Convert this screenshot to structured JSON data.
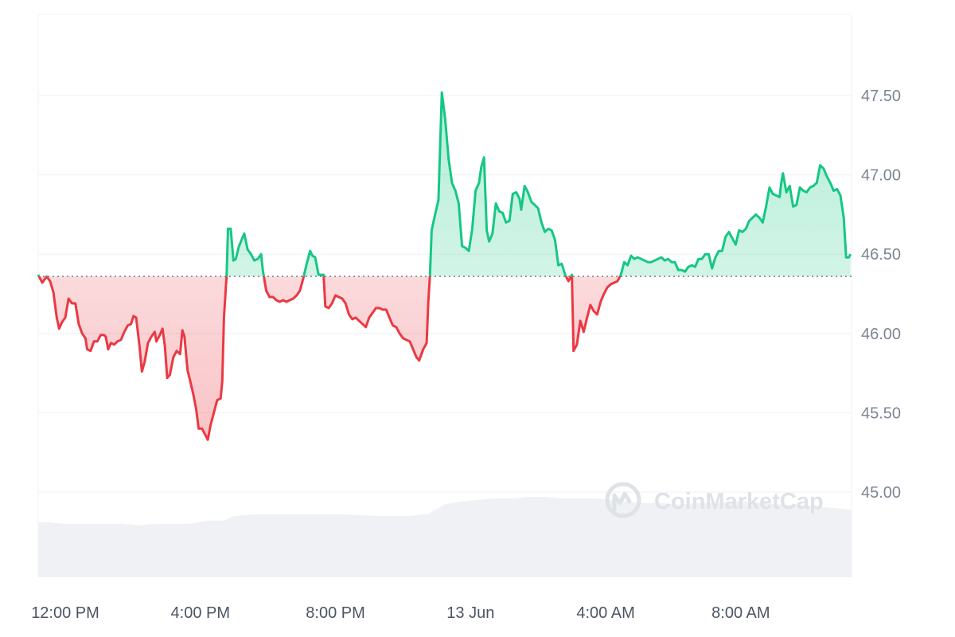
{
  "chart_data": {
    "type": "area",
    "title": "",
    "xlabel": "",
    "ylabel": "",
    "baseline": 46.36,
    "ylim": [
      44.5,
      48.0
    ],
    "yticks": [
      "47.50",
      "47.00",
      "46.50",
      "46.00",
      "45.50",
      "45.00"
    ],
    "ytick_values": [
      47.5,
      47.0,
      46.5,
      46.0,
      45.5,
      45.0
    ],
    "xticks": [
      "12:00 PM",
      "4:00 PM",
      "8:00 PM",
      "13 Jun",
      "4:00 AM",
      "8:00 AM"
    ],
    "xtick_hours": [
      0,
      4,
      8,
      12,
      16,
      20
    ],
    "xlim_hours": [
      0,
      24.08
    ],
    "grid": true,
    "colors": {
      "up": "#16c784",
      "down": "#ea3943",
      "up_fill": "#16c784",
      "down_fill": "#ea3943",
      "volume": "#eff1f4",
      "grid": "#eef0f3",
      "baseline": "#7a7f87"
    },
    "watermark": {
      "text": "CoinMarketCap",
      "icon": "coinmarketcap-logo-icon"
    },
    "series": [
      {
        "values": [
          [
            0.0,
            46.37
          ],
          [
            0.12,
            46.32
          ],
          [
            0.25,
            46.36
          ],
          [
            0.35,
            46.33
          ],
          [
            0.45,
            46.26
          ],
          [
            0.55,
            46.1
          ],
          [
            0.62,
            46.03
          ],
          [
            0.7,
            46.07
          ],
          [
            0.8,
            46.1
          ],
          [
            0.9,
            46.22
          ],
          [
            1.0,
            46.19
          ],
          [
            1.1,
            46.19
          ],
          [
            1.2,
            46.06
          ],
          [
            1.3,
            46.0
          ],
          [
            1.4,
            45.97
          ],
          [
            1.45,
            45.9
          ],
          [
            1.55,
            45.89
          ],
          [
            1.65,
            45.95
          ],
          [
            1.75,
            45.95
          ],
          [
            1.85,
            45.99
          ],
          [
            1.95,
            45.99
          ],
          [
            2.0,
            45.98
          ],
          [
            2.07,
            45.9
          ],
          [
            2.15,
            45.94
          ],
          [
            2.25,
            45.93
          ],
          [
            2.35,
            45.95
          ],
          [
            2.45,
            45.96
          ],
          [
            2.55,
            46.01
          ],
          [
            2.65,
            46.05
          ],
          [
            2.75,
            46.06
          ],
          [
            2.82,
            46.11
          ],
          [
            2.9,
            46.1
          ],
          [
            3.0,
            45.92
          ],
          [
            3.07,
            45.76
          ],
          [
            3.15,
            45.82
          ],
          [
            3.25,
            45.94
          ],
          [
            3.35,
            45.98
          ],
          [
            3.45,
            46.01
          ],
          [
            3.5,
            45.95
          ],
          [
            3.6,
            45.99
          ],
          [
            3.68,
            46.03
          ],
          [
            3.75,
            45.92
          ],
          [
            3.82,
            45.72
          ],
          [
            3.9,
            45.74
          ],
          [
            4.0,
            45.85
          ],
          [
            4.1,
            45.89
          ],
          [
            4.2,
            45.87
          ],
          [
            4.27,
            46.02
          ],
          [
            4.33,
            45.98
          ],
          [
            4.42,
            45.77
          ],
          [
            4.5,
            45.7
          ],
          [
            4.6,
            45.61
          ],
          [
            4.68,
            45.52
          ],
          [
            4.75,
            45.4
          ],
          [
            4.85,
            45.4
          ],
          [
            4.95,
            45.36
          ],
          [
            5.02,
            45.33
          ],
          [
            5.1,
            45.42
          ],
          [
            5.2,
            45.5
          ],
          [
            5.3,
            45.58
          ],
          [
            5.4,
            45.59
          ],
          [
            5.45,
            45.7
          ],
          [
            5.5,
            46.1
          ],
          [
            5.58,
            46.37
          ],
          [
            5.62,
            46.66
          ],
          [
            5.7,
            46.66
          ],
          [
            5.78,
            46.46
          ],
          [
            5.85,
            46.47
          ],
          [
            5.93,
            46.54
          ],
          [
            6.0,
            46.58
          ],
          [
            6.1,
            46.63
          ],
          [
            6.2,
            46.53
          ],
          [
            6.3,
            46.5
          ],
          [
            6.4,
            46.46
          ],
          [
            6.5,
            46.47
          ],
          [
            6.6,
            46.5
          ],
          [
            6.65,
            46.4
          ],
          [
            6.75,
            46.27
          ],
          [
            6.85,
            46.23
          ],
          [
            6.95,
            46.23
          ],
          [
            7.05,
            46.21
          ],
          [
            7.15,
            46.2
          ],
          [
            7.25,
            46.21
          ],
          [
            7.35,
            46.2
          ],
          [
            7.45,
            46.21
          ],
          [
            7.55,
            46.22
          ],
          [
            7.65,
            46.24
          ],
          [
            7.75,
            46.27
          ],
          [
            7.85,
            46.35
          ],
          [
            7.95,
            46.44
          ],
          [
            8.05,
            46.52
          ],
          [
            8.12,
            46.49
          ],
          [
            8.2,
            46.48
          ],
          [
            8.3,
            46.37
          ],
          [
            8.45,
            46.37
          ],
          [
            8.5,
            46.17
          ],
          [
            8.6,
            46.16
          ],
          [
            8.7,
            46.19
          ],
          [
            8.8,
            46.24
          ],
          [
            8.9,
            46.23
          ],
          [
            9.0,
            46.22
          ],
          [
            9.1,
            46.19
          ],
          [
            9.2,
            46.12
          ],
          [
            9.3,
            46.09
          ],
          [
            9.4,
            46.1
          ],
          [
            9.5,
            46.08
          ],
          [
            9.6,
            46.06
          ],
          [
            9.7,
            46.04
          ],
          [
            9.8,
            46.1
          ],
          [
            9.9,
            46.13
          ],
          [
            10.0,
            46.16
          ],
          [
            10.1,
            46.16
          ],
          [
            10.2,
            46.15
          ],
          [
            10.3,
            46.15
          ],
          [
            10.4,
            46.1
          ],
          [
            10.5,
            46.05
          ],
          [
            10.6,
            46.04
          ],
          [
            10.7,
            46.0
          ],
          [
            10.8,
            45.97
          ],
          [
            10.9,
            45.96
          ],
          [
            11.0,
            45.95
          ],
          [
            11.1,
            45.9
          ],
          [
            11.2,
            45.85
          ],
          [
            11.28,
            45.83
          ],
          [
            11.4,
            45.9
          ],
          [
            11.5,
            45.94
          ],
          [
            11.55,
            46.2
          ],
          [
            11.6,
            46.37
          ],
          [
            11.65,
            46.65
          ],
          [
            11.75,
            46.75
          ],
          [
            11.85,
            46.84
          ],
          [
            11.95,
            47.52
          ],
          [
            12.05,
            47.35
          ],
          [
            12.15,
            47.1
          ],
          [
            12.25,
            46.95
          ],
          [
            12.35,
            46.9
          ],
          [
            12.45,
            46.82
          ],
          [
            12.55,
            46.55
          ],
          [
            12.65,
            46.54
          ],
          [
            12.75,
            46.52
          ],
          [
            12.85,
            46.66
          ],
          [
            12.95,
            46.9
          ],
          [
            13.05,
            46.95
          ],
          [
            13.12,
            47.05
          ],
          [
            13.2,
            47.11
          ],
          [
            13.28,
            46.65
          ],
          [
            13.35,
            46.58
          ],
          [
            13.45,
            46.63
          ],
          [
            13.55,
            46.82
          ],
          [
            13.65,
            46.77
          ],
          [
            13.75,
            46.76
          ],
          [
            13.85,
            46.7
          ],
          [
            13.95,
            46.71
          ],
          [
            14.05,
            46.88
          ],
          [
            14.15,
            46.89
          ],
          [
            14.25,
            46.85
          ],
          [
            14.3,
            46.78
          ],
          [
            14.4,
            46.93
          ],
          [
            14.5,
            46.89
          ],
          [
            14.6,
            46.83
          ],
          [
            14.7,
            46.81
          ],
          [
            14.8,
            46.79
          ],
          [
            14.9,
            46.7
          ],
          [
            15.0,
            46.64
          ],
          [
            15.1,
            46.66
          ],
          [
            15.2,
            46.65
          ],
          [
            15.3,
            46.59
          ],
          [
            15.4,
            46.43
          ],
          [
            15.5,
            46.44
          ],
          [
            15.6,
            46.37
          ],
          [
            15.7,
            46.33
          ],
          [
            15.8,
            46.37
          ],
          [
            15.85,
            45.89
          ],
          [
            15.95,
            45.93
          ],
          [
            16.05,
            46.08
          ],
          [
            16.15,
            46.01
          ],
          [
            16.25,
            46.1
          ],
          [
            16.35,
            46.18
          ],
          [
            16.45,
            46.14
          ],
          [
            16.55,
            46.12
          ],
          [
            16.65,
            46.2
          ],
          [
            16.75,
            46.25
          ],
          [
            16.85,
            46.29
          ],
          [
            16.95,
            46.31
          ],
          [
            17.05,
            46.32
          ],
          [
            17.15,
            46.33
          ],
          [
            17.25,
            46.37
          ],
          [
            17.35,
            46.45
          ],
          [
            17.45,
            46.43
          ],
          [
            17.55,
            46.49
          ],
          [
            17.65,
            46.47
          ],
          [
            17.75,
            46.48
          ],
          [
            17.85,
            46.47
          ],
          [
            17.95,
            46.46
          ],
          [
            18.05,
            46.45
          ],
          [
            18.15,
            46.45
          ],
          [
            18.25,
            46.46
          ],
          [
            18.35,
            46.47
          ],
          [
            18.45,
            46.48
          ],
          [
            18.55,
            46.46
          ],
          [
            18.65,
            46.47
          ],
          [
            18.75,
            46.45
          ],
          [
            18.85,
            46.45
          ],
          [
            18.95,
            46.4
          ],
          [
            19.05,
            46.4
          ],
          [
            19.15,
            46.39
          ],
          [
            19.25,
            46.42
          ],
          [
            19.35,
            46.43
          ],
          [
            19.45,
            46.42
          ],
          [
            19.55,
            46.47
          ],
          [
            19.65,
            46.47
          ],
          [
            19.75,
            46.5
          ],
          [
            19.85,
            46.5
          ],
          [
            19.95,
            46.41
          ],
          [
            20.05,
            46.48
          ],
          [
            20.15,
            46.52
          ],
          [
            20.25,
            46.52
          ],
          [
            20.35,
            46.61
          ],
          [
            20.45,
            46.64
          ],
          [
            20.55,
            46.6
          ],
          [
            20.65,
            46.56
          ],
          [
            20.75,
            46.65
          ],
          [
            20.85,
            46.64
          ],
          [
            20.95,
            46.66
          ],
          [
            21.05,
            46.71
          ],
          [
            21.15,
            46.73
          ],
          [
            21.25,
            46.75
          ],
          [
            21.35,
            46.73
          ],
          [
            21.45,
            46.7
          ],
          [
            21.55,
            46.8
          ],
          [
            21.65,
            46.92
          ],
          [
            21.75,
            46.88
          ],
          [
            21.85,
            46.87
          ],
          [
            21.95,
            46.86
          ],
          [
            22.0,
            46.95
          ],
          [
            22.05,
            47.01
          ],
          [
            22.15,
            46.89
          ],
          [
            22.25,
            46.93
          ],
          [
            22.35,
            46.8
          ],
          [
            22.45,
            46.81
          ],
          [
            22.55,
            46.92
          ],
          [
            22.65,
            46.9
          ],
          [
            22.75,
            46.89
          ],
          [
            22.85,
            46.92
          ],
          [
            22.95,
            46.93
          ],
          [
            23.05,
            46.95
          ],
          [
            23.15,
            47.06
          ],
          [
            23.25,
            47.04
          ],
          [
            23.35,
            46.99
          ],
          [
            23.45,
            46.95
          ],
          [
            23.55,
            46.9
          ],
          [
            23.65,
            46.91
          ],
          [
            23.75,
            46.87
          ],
          [
            23.85,
            46.73
          ],
          [
            23.92,
            46.48
          ],
          [
            24.0,
            46.48
          ],
          [
            24.05,
            46.5
          ]
        ]
      }
    ],
    "volume": [
      [
        0.0,
        44.81
      ],
      [
        0.3,
        44.81
      ],
      [
        0.7,
        44.8
      ],
      [
        1.5,
        44.8
      ],
      [
        2.5,
        44.8
      ],
      [
        3.0,
        44.79
      ],
      [
        3.5,
        44.8
      ],
      [
        4.0,
        44.8
      ],
      [
        4.5,
        44.8
      ],
      [
        5.0,
        44.82
      ],
      [
        5.5,
        44.82
      ],
      [
        5.8,
        44.85
      ],
      [
        6.5,
        44.86
      ],
      [
        7.5,
        44.86
      ],
      [
        8.5,
        44.86
      ],
      [
        9.0,
        44.86
      ],
      [
        10.0,
        44.85
      ],
      [
        11.0,
        44.85
      ],
      [
        11.5,
        44.86
      ],
      [
        11.8,
        44.89
      ],
      [
        12.0,
        44.92
      ],
      [
        12.5,
        44.94
      ],
      [
        13.0,
        44.95
      ],
      [
        13.5,
        44.96
      ],
      [
        14.0,
        44.96
      ],
      [
        14.5,
        44.97
      ],
      [
        15.0,
        44.97
      ],
      [
        15.5,
        44.96
      ],
      [
        16.0,
        44.96
      ],
      [
        16.5,
        44.96
      ],
      [
        17.0,
        44.95
      ],
      [
        17.5,
        44.94
      ],
      [
        18.0,
        44.93
      ],
      [
        18.5,
        44.93
      ],
      [
        19.0,
        44.92
      ],
      [
        19.5,
        44.93
      ],
      [
        20.0,
        44.93
      ],
      [
        20.5,
        44.94
      ],
      [
        21.0,
        44.94
      ],
      [
        21.5,
        44.93
      ],
      [
        22.0,
        44.92
      ],
      [
        22.5,
        44.92
      ],
      [
        23.0,
        44.91
      ],
      [
        23.5,
        44.9
      ],
      [
        24.0,
        44.89
      ],
      [
        24.08,
        44.89
      ]
    ]
  }
}
